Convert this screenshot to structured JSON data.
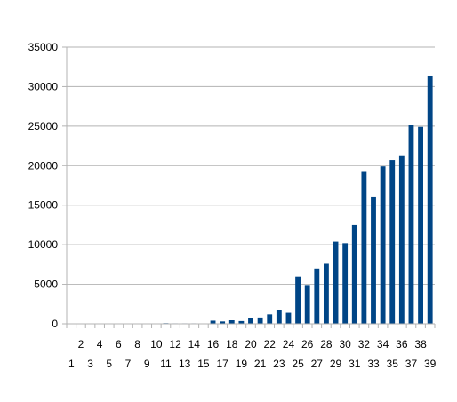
{
  "chart_data": {
    "type": "bar",
    "categories": [
      "1",
      "2",
      "3",
      "4",
      "5",
      "6",
      "7",
      "8",
      "9",
      "10",
      "11",
      "12",
      "13",
      "14",
      "15",
      "16",
      "17",
      "18",
      "19",
      "20",
      "21",
      "22",
      "23",
      "24",
      "25",
      "26",
      "27",
      "28",
      "29",
      "30",
      "31",
      "32",
      "33",
      "34",
      "35",
      "36",
      "37",
      "38",
      "39"
    ],
    "values": [
      0,
      0,
      0,
      0,
      0,
      0,
      0,
      0,
      0,
      0,
      80,
      60,
      60,
      60,
      0,
      400,
      300,
      450,
      350,
      700,
      800,
      1200,
      1800,
      1400,
      6000,
      4800,
      7000,
      7600,
      10400,
      10200,
      12500,
      19300,
      16100,
      19900,
      20700,
      21300,
      25100,
      24900,
      31400
    ],
    "ylim": [
      0,
      35000
    ],
    "yticks": [
      "0",
      "5000",
      "10000",
      "15000",
      "20000",
      "25000",
      "30000",
      "35000"
    ],
    "grid": true,
    "legend": "none",
    "bar_color": "#004586",
    "grid_color": "#b3b3b3",
    "axis_color": "#b3b3b3"
  }
}
